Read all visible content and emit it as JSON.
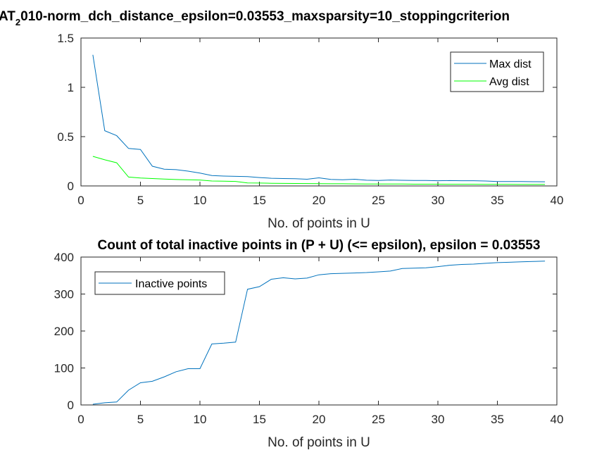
{
  "colors": {
    "max_dist": "#0072BD",
    "avg_dist": "#00FF00",
    "inactive": "#0072BD",
    "axis": "#262626"
  },
  "chart_data": [
    {
      "type": "line",
      "title_parts": [
        "",
        "AT",
        "2",
        "010-norm_dch_distance_epsilon=0.03553_maxsparsity=10_stoppingcriterion"
      ],
      "xlabel": "No. of points in U",
      "ylabel": "",
      "xlim": [
        0,
        40
      ],
      "ylim": [
        0,
        1.5
      ],
      "xticks": [
        "0",
        "5",
        "10",
        "15",
        "20",
        "25",
        "30",
        "35",
        "40"
      ],
      "yticks": [
        "0",
        "0.5",
        "1",
        "1.5"
      ],
      "legend_position": "top-right",
      "x": [
        1,
        2,
        3,
        4,
        5,
        6,
        7,
        8,
        9,
        10,
        11,
        12,
        13,
        14,
        15,
        16,
        17,
        18,
        19,
        20,
        21,
        22,
        23,
        24,
        25,
        26,
        27,
        28,
        29,
        30,
        31,
        32,
        33,
        34,
        35,
        36,
        37,
        38,
        39
      ],
      "series": [
        {
          "name": "Max dist",
          "color": "#0072BD",
          "values": [
            1.33,
            0.56,
            0.51,
            0.38,
            0.37,
            0.2,
            0.17,
            0.165,
            0.15,
            0.13,
            0.105,
            0.1,
            0.097,
            0.094,
            0.085,
            0.078,
            0.075,
            0.073,
            0.068,
            0.082,
            0.066,
            0.062,
            0.068,
            0.058,
            0.055,
            0.06,
            0.057,
            0.055,
            0.056,
            0.053,
            0.054,
            0.053,
            0.053,
            0.05,
            0.045,
            0.045,
            0.044,
            0.043,
            0.042
          ]
        },
        {
          "name": "Avg dist",
          "color": "#00FF00",
          "values": [
            0.3,
            0.265,
            0.235,
            0.09,
            0.08,
            0.075,
            0.07,
            0.065,
            0.062,
            0.06,
            0.05,
            0.048,
            0.046,
            0.03,
            0.029,
            0.027,
            0.026,
            0.025,
            0.024,
            0.023,
            0.022,
            0.022,
            0.021,
            0.02,
            0.02,
            0.019,
            0.019,
            0.018,
            0.018,
            0.018,
            0.017,
            0.017,
            0.017,
            0.016,
            0.016,
            0.016,
            0.015,
            0.015,
            0.015
          ]
        }
      ]
    },
    {
      "type": "line",
      "title": "Count of total inactive points in (P + U) (<= epsilon), epsilon = 0.03553",
      "xlabel": "No. of points in U",
      "ylabel": "",
      "xlim": [
        0,
        40
      ],
      "ylim": [
        0,
        400
      ],
      "xticks": [
        "0",
        "5",
        "10",
        "15",
        "20",
        "25",
        "30",
        "35",
        "40"
      ],
      "yticks": [
        "0",
        "100",
        "200",
        "300",
        "400"
      ],
      "legend_position": "top-left",
      "x": [
        1,
        2,
        3,
        4,
        5,
        6,
        7,
        8,
        9,
        10,
        11,
        12,
        13,
        14,
        15,
        16,
        17,
        18,
        19,
        20,
        21,
        22,
        23,
        24,
        25,
        26,
        27,
        28,
        29,
        30,
        31,
        32,
        33,
        34,
        35,
        36,
        37,
        38,
        39
      ],
      "series": [
        {
          "name": "Inactive points",
          "color": "#0072BD",
          "values": [
            2,
            6,
            8,
            40,
            60,
            64,
            76,
            90,
            98,
            98,
            165,
            167,
            170,
            313,
            320,
            340,
            344,
            341,
            343,
            352,
            355,
            356,
            357,
            358,
            360,
            362,
            369,
            370,
            371,
            374,
            378,
            380,
            381,
            383,
            385,
            386,
            387,
            388,
            389
          ]
        }
      ]
    }
  ]
}
